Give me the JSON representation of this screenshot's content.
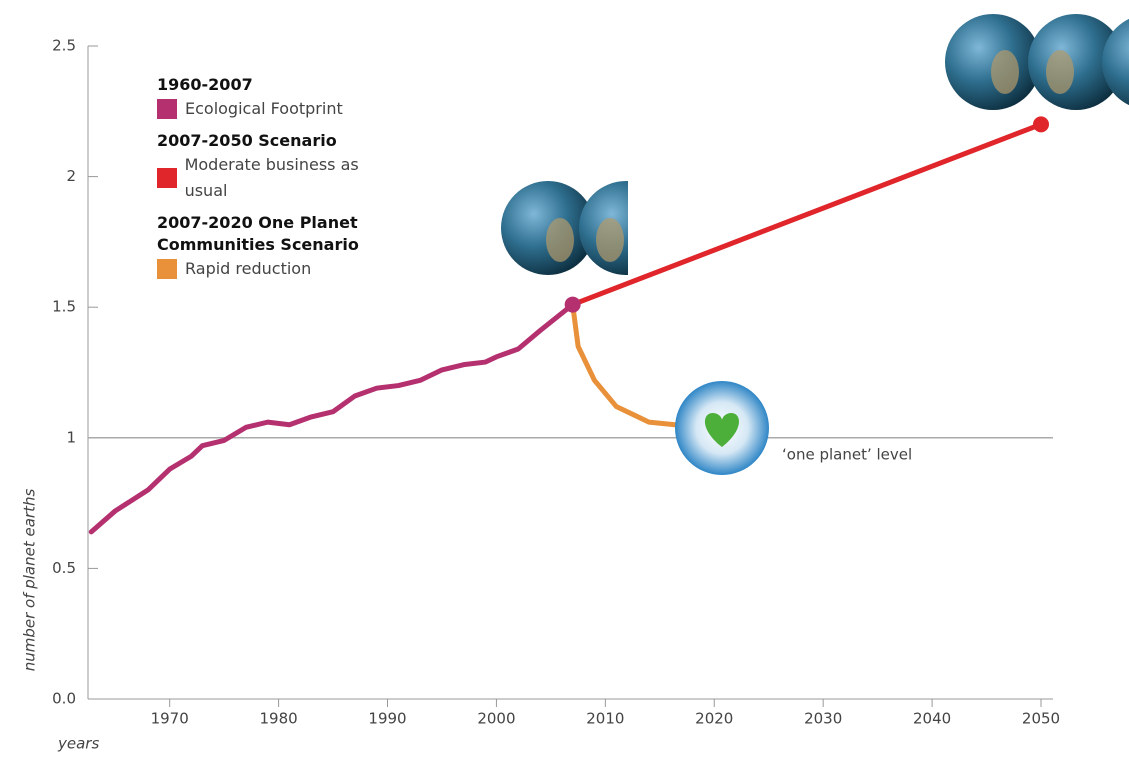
{
  "chart_data": {
    "type": "line",
    "y_label": "number of planet earths",
    "x_label": "years",
    "xlim": [
      1962.5,
      2050
    ],
    "xticks": [
      1970,
      1980,
      1990,
      2000,
      2010,
      2020,
      2030,
      2040,
      2050
    ],
    "ylim": [
      0,
      2.5
    ],
    "yticks": [
      {
        "value": 0,
        "label": "0.0"
      },
      0.5,
      1,
      1.5,
      2,
      2.5
    ],
    "reference_line": {
      "value": 1,
      "label": "‘one planet’ level"
    },
    "legend_headings": [
      "1960-2007",
      "2007-2050 Scenario",
      "2007-2020 One Planet Communities Scenario"
    ],
    "series": [
      {
        "name": "Ecological Footprint",
        "color": "#b5306f",
        "x": [
          1962.8,
          1965,
          1968,
          1970,
          1972,
          1973,
          1975,
          1977,
          1979,
          1981,
          1983,
          1985,
          1987,
          1989,
          1991,
          1993,
          1995,
          1997,
          1999,
          2000,
          2002,
          2004,
          2007
        ],
        "values": [
          0.64,
          0.72,
          0.8,
          0.88,
          0.93,
          0.97,
          0.99,
          1.04,
          1.06,
          1.05,
          1.08,
          1.1,
          1.16,
          1.19,
          1.2,
          1.22,
          1.26,
          1.28,
          1.29,
          1.31,
          1.34,
          1.41,
          1.51
        ]
      },
      {
        "name": "Moderate business as usual",
        "color": "#e0262b",
        "x": [
          2007,
          2050
        ],
        "values": [
          1.51,
          2.2
        ]
      },
      {
        "name": "Rapid reduction",
        "color": "#e8903a",
        "x": [
          2007,
          2007.5,
          2009,
          2011,
          2014,
          2016.4
        ],
        "values": [
          1.51,
          1.35,
          1.22,
          1.12,
          1.06,
          1.05
        ]
      }
    ]
  }
}
